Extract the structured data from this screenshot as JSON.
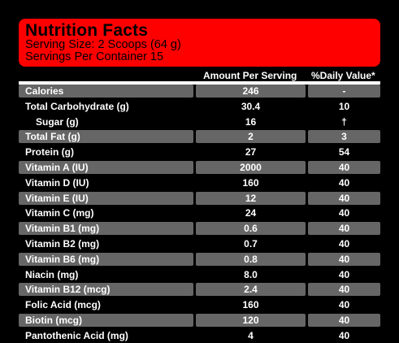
{
  "header": {
    "title": "Nutrition Facts",
    "serving_size": "Serving Size: 2 Scoops (64 g)",
    "servings_per_container": "Servings Per Container 15"
  },
  "columns": {
    "amount": "Amount Per Serving",
    "daily_value": "%Daily Value*"
  },
  "rows": [
    {
      "name": "Calories",
      "amount": "246",
      "dv": "-",
      "shaded": true
    },
    {
      "name": "Total Carbohydrate (g)",
      "amount": "30.4",
      "dv": "10",
      "shaded": false
    },
    {
      "name": "Sugar (g)",
      "amount": "16",
      "dv": "†",
      "shaded": false,
      "indent": true
    },
    {
      "name": "Total Fat (g)",
      "amount": "2",
      "dv": "3",
      "shaded": true
    },
    {
      "name": "Protein (g)",
      "amount": "27",
      "dv": "54",
      "shaded": false
    },
    {
      "name": "Vitamin A (IU)",
      "amount": "2000",
      "dv": "40",
      "shaded": true
    },
    {
      "name": "Vitamin D (IU)",
      "amount": "160",
      "dv": "40",
      "shaded": false
    },
    {
      "name": "Vitamin E (IU)",
      "amount": "12",
      "dv": "40",
      "shaded": true
    },
    {
      "name": "Vitamin C (mg)",
      "amount": "24",
      "dv": "40",
      "shaded": false
    },
    {
      "name": "Vitamin B1 (mg)",
      "amount": "0.6",
      "dv": "40",
      "shaded": true
    },
    {
      "name": "Vitamin B2 (mg)",
      "amount": "0.7",
      "dv": "40",
      "shaded": false
    },
    {
      "name": "Vitamin B6 (mg)",
      "amount": "0.8",
      "dv": "40",
      "shaded": true
    },
    {
      "name": "Niacin (mg)",
      "amount": "8.0",
      "dv": "40",
      "shaded": false
    },
    {
      "name": "Vitamin B12 (mcg)",
      "amount": "2.4",
      "dv": "40",
      "shaded": true
    },
    {
      "name": "Folic Acid (mcg)",
      "amount": "160",
      "dv": "40",
      "shaded": false
    },
    {
      "name": "Biotin (mcg)",
      "amount": "120",
      "dv": "40",
      "shaded": true
    },
    {
      "name": "Pantothenic Acid (mg)",
      "amount": "4",
      "dv": "40",
      "shaded": false
    }
  ],
  "colors": {
    "header_background": "#ff0000",
    "shaded_row": "#666666",
    "page_background": "#000000"
  }
}
